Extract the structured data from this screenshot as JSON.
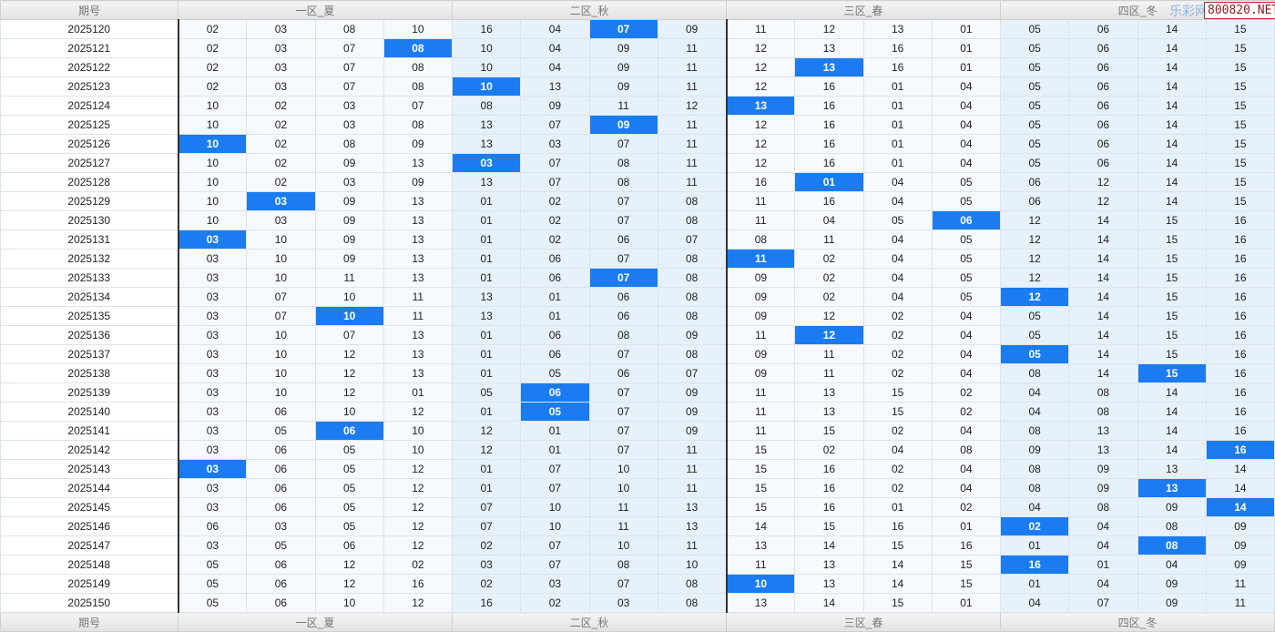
{
  "header": {
    "period": "期号",
    "zones": [
      "一区_夏",
      "二区_秋",
      "三区_春",
      "四区_冬"
    ]
  },
  "watermark": {
    "site": "乐彩网",
    "url": "800820.NET"
  },
  "colors": {
    "highlight": "#1a7cf0",
    "zone_light": "#f6f9fd",
    "zone_blue": "#e6f1fc"
  },
  "rows": [
    {
      "period": "2025120",
      "nums": [
        "02",
        "03",
        "08",
        "10",
        "16",
        "04",
        "07",
        "09",
        "11",
        "12",
        "13",
        "01",
        "05",
        "06",
        "14",
        "15"
      ],
      "hl": 6
    },
    {
      "period": "2025121",
      "nums": [
        "02",
        "03",
        "07",
        "08",
        "10",
        "04",
        "09",
        "11",
        "12",
        "13",
        "16",
        "01",
        "05",
        "06",
        "14",
        "15"
      ],
      "hl": 3
    },
    {
      "period": "2025122",
      "nums": [
        "02",
        "03",
        "07",
        "08",
        "10",
        "04",
        "09",
        "11",
        "12",
        "13",
        "16",
        "01",
        "05",
        "06",
        "14",
        "15"
      ],
      "hl": 9
    },
    {
      "period": "2025123",
      "nums": [
        "02",
        "03",
        "07",
        "08",
        "10",
        "13",
        "09",
        "11",
        "12",
        "16",
        "01",
        "04",
        "05",
        "06",
        "14",
        "15"
      ],
      "hl": 4
    },
    {
      "period": "2025124",
      "nums": [
        "10",
        "02",
        "03",
        "07",
        "08",
        "09",
        "11",
        "12",
        "13",
        "16",
        "01",
        "04",
        "05",
        "06",
        "14",
        "15"
      ],
      "hl": 8
    },
    {
      "period": "2025125",
      "nums": [
        "10",
        "02",
        "03",
        "08",
        "13",
        "07",
        "09",
        "11",
        "12",
        "16",
        "01",
        "04",
        "05",
        "06",
        "14",
        "15"
      ],
      "hl": 6
    },
    {
      "period": "2025126",
      "nums": [
        "10",
        "02",
        "08",
        "09",
        "13",
        "03",
        "07",
        "11",
        "12",
        "16",
        "01",
        "04",
        "05",
        "06",
        "14",
        "15"
      ],
      "hl": 0
    },
    {
      "period": "2025127",
      "nums": [
        "10",
        "02",
        "09",
        "13",
        "03",
        "07",
        "08",
        "11",
        "12",
        "16",
        "01",
        "04",
        "05",
        "06",
        "14",
        "15"
      ],
      "hl": 4
    },
    {
      "period": "2025128",
      "nums": [
        "10",
        "02",
        "03",
        "09",
        "13",
        "07",
        "08",
        "11",
        "16",
        "01",
        "04",
        "05",
        "06",
        "12",
        "14",
        "15"
      ],
      "hl": 9
    },
    {
      "period": "2025129",
      "nums": [
        "10",
        "03",
        "09",
        "13",
        "01",
        "02",
        "07",
        "08",
        "11",
        "16",
        "04",
        "05",
        "06",
        "12",
        "14",
        "15"
      ],
      "hl": 1
    },
    {
      "period": "2025130",
      "nums": [
        "10",
        "03",
        "09",
        "13",
        "01",
        "02",
        "07",
        "08",
        "11",
        "04",
        "05",
        "06",
        "12",
        "14",
        "15",
        "16"
      ],
      "hl": 11
    },
    {
      "period": "2025131",
      "nums": [
        "03",
        "10",
        "09",
        "13",
        "01",
        "02",
        "06",
        "07",
        "08",
        "11",
        "04",
        "05",
        "12",
        "14",
        "15",
        "16"
      ],
      "hl": 0
    },
    {
      "period": "2025132",
      "nums": [
        "03",
        "10",
        "09",
        "13",
        "01",
        "06",
        "07",
        "08",
        "11",
        "02",
        "04",
        "05",
        "12",
        "14",
        "15",
        "16"
      ],
      "hl": 8
    },
    {
      "period": "2025133",
      "nums": [
        "03",
        "10",
        "11",
        "13",
        "01",
        "06",
        "07",
        "08",
        "09",
        "02",
        "04",
        "05",
        "12",
        "14",
        "15",
        "16"
      ],
      "hl": 6
    },
    {
      "period": "2025134",
      "nums": [
        "03",
        "07",
        "10",
        "11",
        "13",
        "01",
        "06",
        "08",
        "09",
        "02",
        "04",
        "05",
        "12",
        "14",
        "15",
        "16"
      ],
      "hl": 12
    },
    {
      "period": "2025135",
      "nums": [
        "03",
        "07",
        "10",
        "11",
        "13",
        "01",
        "06",
        "08",
        "09",
        "12",
        "02",
        "04",
        "05",
        "14",
        "15",
        "16"
      ],
      "hl": 2
    },
    {
      "period": "2025136",
      "nums": [
        "03",
        "10",
        "07",
        "13",
        "01",
        "06",
        "08",
        "09",
        "11",
        "12",
        "02",
        "04",
        "05",
        "14",
        "15",
        "16"
      ],
      "hl": 9
    },
    {
      "period": "2025137",
      "nums": [
        "03",
        "10",
        "12",
        "13",
        "01",
        "06",
        "07",
        "08",
        "09",
        "11",
        "02",
        "04",
        "05",
        "14",
        "15",
        "16"
      ],
      "hl": 12
    },
    {
      "period": "2025138",
      "nums": [
        "03",
        "10",
        "12",
        "13",
        "01",
        "05",
        "06",
        "07",
        "09",
        "11",
        "02",
        "04",
        "08",
        "14",
        "15",
        "16"
      ],
      "hl": 14
    },
    {
      "period": "2025139",
      "nums": [
        "03",
        "10",
        "12",
        "01",
        "05",
        "06",
        "07",
        "09",
        "11",
        "13",
        "15",
        "02",
        "04",
        "08",
        "14",
        "16"
      ],
      "hl": 5
    },
    {
      "period": "2025140",
      "nums": [
        "03",
        "06",
        "10",
        "12",
        "01",
        "05",
        "07",
        "09",
        "11",
        "13",
        "15",
        "02",
        "04",
        "08",
        "14",
        "16"
      ],
      "hl": 5
    },
    {
      "period": "2025141",
      "nums": [
        "03",
        "05",
        "06",
        "10",
        "12",
        "01",
        "07",
        "09",
        "11",
        "15",
        "02",
        "04",
        "08",
        "13",
        "14",
        "16"
      ],
      "hl": 2
    },
    {
      "period": "2025142",
      "nums": [
        "03",
        "06",
        "05",
        "10",
        "12",
        "01",
        "07",
        "11",
        "15",
        "02",
        "04",
        "08",
        "09",
        "13",
        "14",
        "16"
      ],
      "hl": 15
    },
    {
      "period": "2025143",
      "nums": [
        "03",
        "06",
        "05",
        "12",
        "01",
        "07",
        "10",
        "11",
        "15",
        "16",
        "02",
        "04",
        "08",
        "09",
        "13",
        "14"
      ],
      "hl": 0
    },
    {
      "period": "2025144",
      "nums": [
        "03",
        "06",
        "05",
        "12",
        "01",
        "07",
        "10",
        "11",
        "15",
        "16",
        "02",
        "04",
        "08",
        "09",
        "13",
        "14"
      ],
      "hl": 14
    },
    {
      "period": "2025145",
      "nums": [
        "03",
        "06",
        "05",
        "12",
        "07",
        "10",
        "11",
        "13",
        "15",
        "16",
        "01",
        "02",
        "04",
        "08",
        "09",
        "14"
      ],
      "hl": 15
    },
    {
      "period": "2025146",
      "nums": [
        "06",
        "03",
        "05",
        "12",
        "07",
        "10",
        "11",
        "13",
        "14",
        "15",
        "16",
        "01",
        "02",
        "04",
        "08",
        "09"
      ],
      "hl": 12
    },
    {
      "period": "2025147",
      "nums": [
        "03",
        "05",
        "06",
        "12",
        "02",
        "07",
        "10",
        "11",
        "13",
        "14",
        "15",
        "16",
        "01",
        "04",
        "08",
        "09"
      ],
      "hl": 14
    },
    {
      "period": "2025148",
      "nums": [
        "05",
        "06",
        "12",
        "02",
        "03",
        "07",
        "08",
        "10",
        "11",
        "13",
        "14",
        "15",
        "16",
        "01",
        "04",
        "09"
      ],
      "hl": 12
    },
    {
      "period": "2025149",
      "nums": [
        "05",
        "06",
        "12",
        "16",
        "02",
        "03",
        "07",
        "08",
        "10",
        "13",
        "14",
        "15",
        "01",
        "04",
        "09",
        "11"
      ],
      "hl": 8
    },
    {
      "period": "2025150",
      "nums": [
        "05",
        "06",
        "10",
        "12",
        "16",
        "02",
        "03",
        "08",
        "13",
        "14",
        "15",
        "01",
        "04",
        "07",
        "09",
        "11"
      ],
      "hl": -1
    }
  ]
}
